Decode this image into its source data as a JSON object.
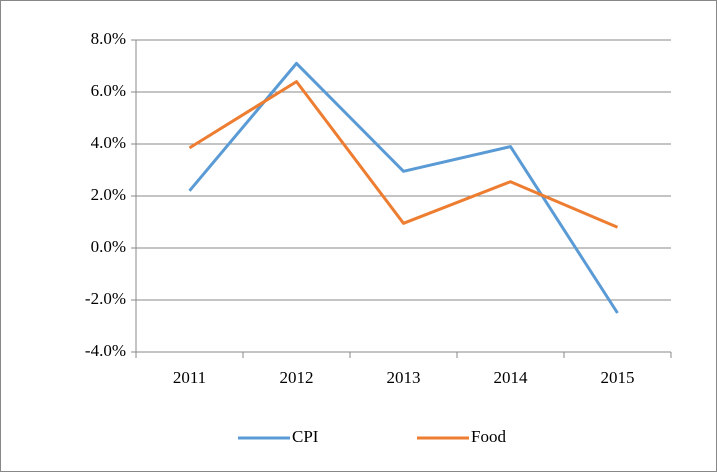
{
  "chart_data": {
    "type": "line",
    "categories": [
      "2011",
      "2012",
      "2013",
      "2014",
      "2015"
    ],
    "series": [
      {
        "name": "CPI",
        "color": "#5b9bd5",
        "values": [
          2.2,
          7.1,
          2.95,
          3.9,
          -2.5
        ]
      },
      {
        "name": "Food",
        "color": "#ed7d31",
        "values": [
          3.85,
          6.4,
          0.95,
          2.55,
          0.8
        ]
      }
    ],
    "ylim": [
      -4,
      8
    ],
    "yticks": [
      {
        "value": -4,
        "label": "-4.0%"
      },
      {
        "value": -2,
        "label": "-2.0%"
      },
      {
        "value": 0,
        "label": "0.0%"
      },
      {
        "value": 2,
        "label": "2.0%"
      },
      {
        "value": 4,
        "label": "4.0%"
      },
      {
        "value": 6,
        "label": "6.0%"
      },
      {
        "value": 8,
        "label": "8.0%"
      }
    ],
    "grid": true,
    "legend": "bottom"
  }
}
